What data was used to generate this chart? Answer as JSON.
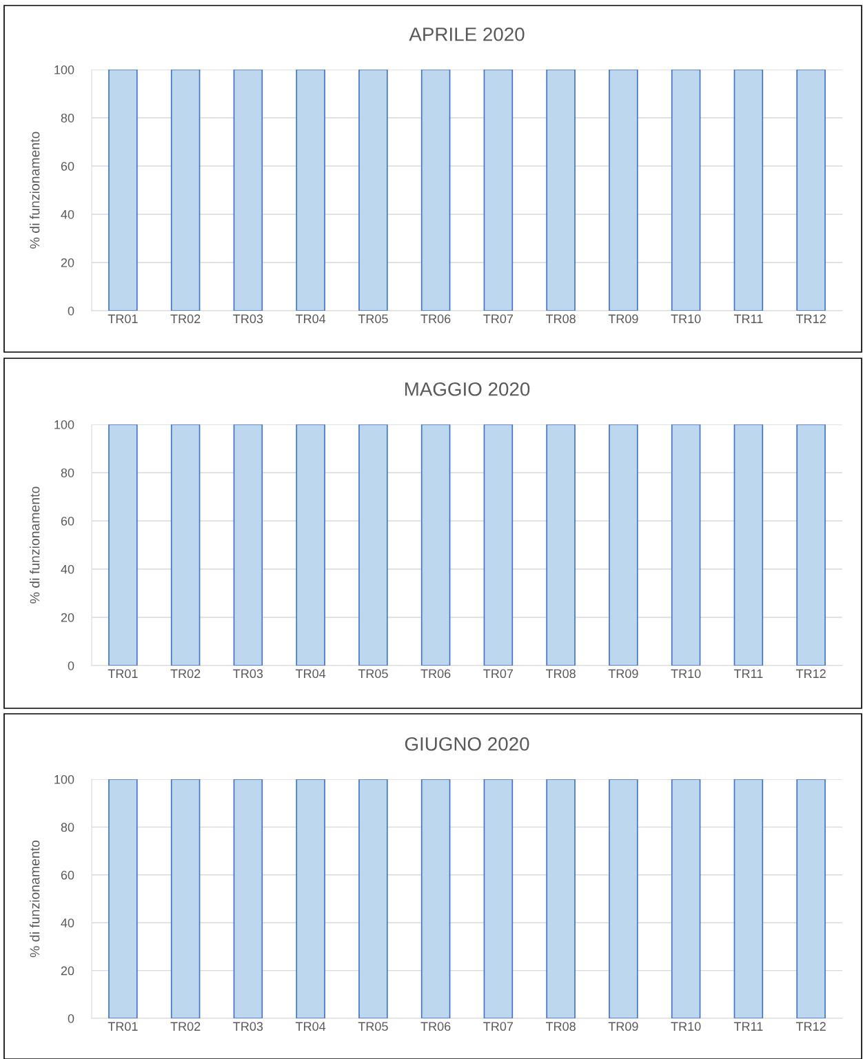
{
  "chart_data": [
    {
      "type": "bar",
      "title": "APRILE 2020",
      "ylabel": "% di funzionamento",
      "categories": [
        "TR01",
        "TR02",
        "TR03",
        "TR04",
        "TR05",
        "TR06",
        "TR07",
        "TR08",
        "TR09",
        "TR10",
        "TR11",
        "TR12"
      ],
      "values": [
        100,
        100,
        100,
        100,
        100,
        100,
        100,
        100,
        100,
        100,
        100,
        100
      ],
      "color": "#bdd7ee",
      "ylim": [
        0,
        100
      ],
      "yticks": [
        0,
        20,
        40,
        60,
        80,
        100
      ],
      "grid": "y",
      "legend": false
    },
    {
      "type": "bar",
      "title": "MAGGIO 2020",
      "ylabel": "% di funzionamento",
      "categories": [
        "TR01",
        "TR02",
        "TR03",
        "TR04",
        "TR05",
        "TR06",
        "TR07",
        "TR08",
        "TR09",
        "TR10",
        "TR11",
        "TR12"
      ],
      "values": [
        100,
        100,
        100,
        100,
        100,
        100,
        100,
        100,
        100,
        100,
        100,
        100
      ],
      "color": "#bdd7ee",
      "ylim": [
        0,
        100
      ],
      "yticks": [
        0,
        20,
        40,
        60,
        80,
        100
      ],
      "grid": "y",
      "legend": false
    },
    {
      "type": "bar",
      "title": "GIUGNO 2020",
      "ylabel": "% di funzionamento",
      "categories": [
        "TR01",
        "TR02",
        "TR03",
        "TR04",
        "TR05",
        "TR06",
        "TR07",
        "TR08",
        "TR09",
        "TR10",
        "TR11",
        "TR12"
      ],
      "values": [
        100,
        100,
        100,
        100,
        100,
        100,
        100,
        100,
        100,
        100,
        100,
        100
      ],
      "color": "#bdd7ee",
      "ylim": [
        0,
        100
      ],
      "yticks": [
        0,
        20,
        40,
        60,
        80,
        100
      ],
      "grid": "y",
      "legend": false
    }
  ]
}
